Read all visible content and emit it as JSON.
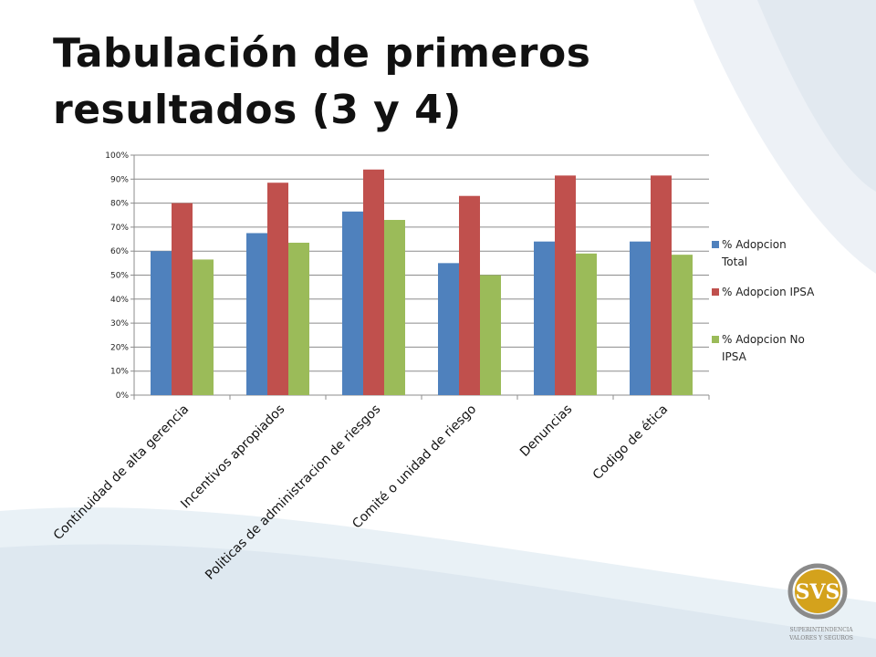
{
  "slide": {
    "title": "Tabulación de primeros resultados (3 y 4)"
  },
  "logo": {
    "mark": "SVS",
    "caption_line1": "SUPERINTENDENCIA",
    "caption_line2": "VALORES Y SEGUROS",
    "gold": "#d4a21c"
  },
  "chart_data": {
    "type": "bar",
    "categories": [
      "Continuidad de alta gerencia",
      "Incentivos apropiados",
      "Politicas de administracion de riesgos",
      "Comité o unidad de riesgo",
      "Denuncias",
      "Codigo de ética"
    ],
    "series": [
      {
        "name": "% Adopcion Total",
        "color": "#4f81bd",
        "values": [
          60,
          67.5,
          76.5,
          55,
          64,
          64
        ]
      },
      {
        "name": "% Adopcion IPSA",
        "color": "#c0504d",
        "values": [
          80,
          88.5,
          94,
          83,
          91.5,
          91.5
        ]
      },
      {
        "name": "% Adopcion No IPSA",
        "color": "#9bbb59",
        "values": [
          56.5,
          63.5,
          73,
          50,
          59,
          58.5
        ]
      }
    ],
    "yticks": [
      "0%",
      "10%",
      "20%",
      "30%",
      "40%",
      "50%",
      "60%",
      "70%",
      "80%",
      "90%",
      "100%"
    ],
    "ylim": [
      0,
      100
    ],
    "grid": true,
    "legend_position": "right",
    "legend_lines": [
      [
        "% Adopcion",
        "Total"
      ],
      [
        "% Adopcion IPSA"
      ],
      [
        "% Adopcion No",
        "IPSA"
      ]
    ]
  }
}
